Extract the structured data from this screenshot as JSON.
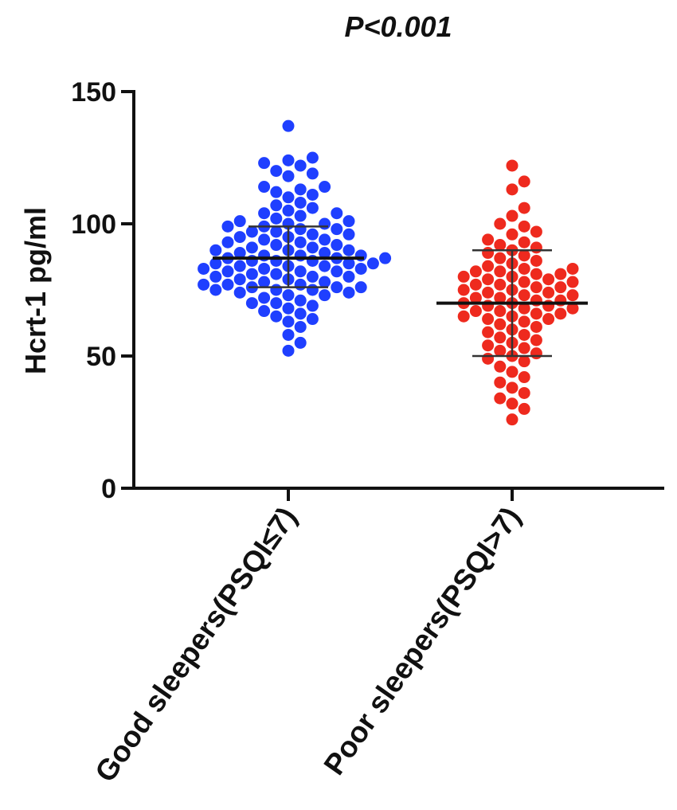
{
  "chart_data": {
    "type": "scatter",
    "annotation": "P<0.001",
    "ylabel": "Hcrt-1 pg/ml",
    "xlabel": "",
    "ylim": [
      0,
      150
    ],
    "yticks": [
      0,
      50,
      100,
      150
    ],
    "grid": false,
    "categories": [
      "Good sleepers(PSQI≤7)",
      "Poor sleepers(PSQI>7)"
    ],
    "series": [
      {
        "category": "Good sleepers(PSQI≤7)",
        "color": "#1f3fff",
        "mean": 87,
        "sd_upper": 99,
        "sd_lower": 76,
        "values": [
          137,
          125,
          124,
          123,
          122,
          120,
          119,
          118,
          114,
          114,
          113,
          112,
          111,
          110,
          108,
          107,
          106,
          105,
          104,
          104,
          103,
          102,
          101,
          101,
          100,
          100,
          99,
          99,
          98,
          98,
          97,
          97,
          96,
          96,
          95,
          95,
          94,
          94,
          93,
          93,
          92,
          92,
          91,
          91,
          90,
          90,
          90,
          89,
          89,
          88,
          88,
          88,
          87,
          87,
          87,
          86,
          86,
          86,
          85,
          85,
          85,
          84,
          84,
          84,
          83,
          83,
          83,
          82,
          82,
          82,
          81,
          81,
          80,
          80,
          80,
          79,
          79,
          78,
          78,
          77,
          77,
          77,
          76,
          76,
          76,
          75,
          75,
          75,
          74,
          74,
          73,
          73,
          72,
          71,
          70,
          70,
          69,
          68,
          67,
          66,
          65,
          64,
          63,
          61,
          58,
          55,
          52
        ]
      },
      {
        "category": "Poor sleepers(PSQI>7)",
        "color": "#ee2a1e",
        "mean": 70,
        "sd_upper": 90,
        "sd_lower": 50,
        "values": [
          122,
          116,
          113,
          106,
          103,
          100,
          99,
          97,
          96,
          94,
          93,
          92,
          91,
          90,
          89,
          88,
          87,
          86,
          85,
          84,
          83,
          83,
          82,
          82,
          81,
          81,
          80,
          80,
          79,
          79,
          78,
          78,
          77,
          77,
          76,
          76,
          75,
          75,
          74,
          74,
          73,
          73,
          72,
          72,
          71,
          71,
          70,
          70,
          69,
          69,
          68,
          68,
          67,
          67,
          66,
          66,
          65,
          65,
          64,
          64,
          63,
          62,
          61,
          60,
          59,
          58,
          57,
          56,
          55,
          54,
          53,
          52,
          51,
          50,
          49,
          48,
          46,
          44,
          42,
          40,
          38,
          36,
          34,
          32,
          30,
          26
        ]
      }
    ]
  }
}
